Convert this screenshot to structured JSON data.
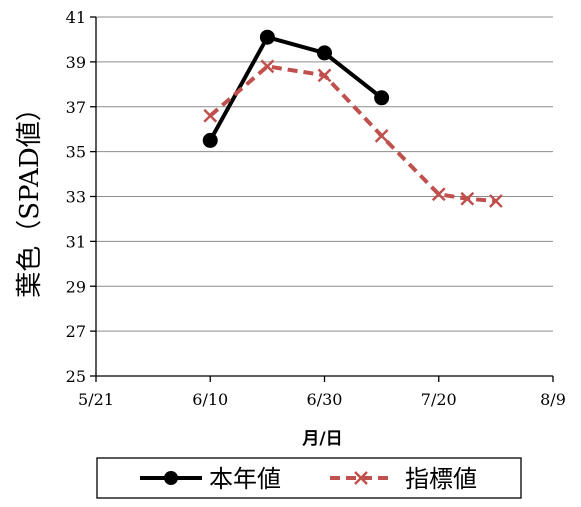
{
  "chart_data": {
    "type": "line",
    "xlabel": "月/日",
    "ylabel": "葉色（SPAD値）",
    "x_ticks": [
      "5/21",
      "6/10",
      "6/30",
      "7/20",
      "8/9"
    ],
    "xlim": [
      "5/21",
      "8/9"
    ],
    "ylim": [
      25,
      41
    ],
    "y_ticks": [
      25,
      27,
      29,
      31,
      33,
      35,
      37,
      39,
      41
    ],
    "grid": "horizontal",
    "legend_position": "bottom",
    "series": [
      {
        "name": "本年値",
        "color": "#000000",
        "style": "solid",
        "marker": "circle",
        "points": [
          {
            "x": "6/10",
            "y": 35.5
          },
          {
            "x": "6/20",
            "y": 40.1
          },
          {
            "x": "6/30",
            "y": 39.4
          },
          {
            "x": "7/10",
            "y": 37.4
          }
        ]
      },
      {
        "name": "指標値",
        "color": "#c0504d",
        "style": "dashed",
        "marker": "x",
        "points": [
          {
            "x": "6/10",
            "y": 36.6
          },
          {
            "x": "6/20",
            "y": 38.8
          },
          {
            "x": "6/30",
            "y": 38.4
          },
          {
            "x": "7/10",
            "y": 35.7
          },
          {
            "x": "7/20",
            "y": 33.1
          },
          {
            "x": "7/25",
            "y": 32.9
          },
          {
            "x": "7/30",
            "y": 32.8
          }
        ]
      }
    ]
  }
}
